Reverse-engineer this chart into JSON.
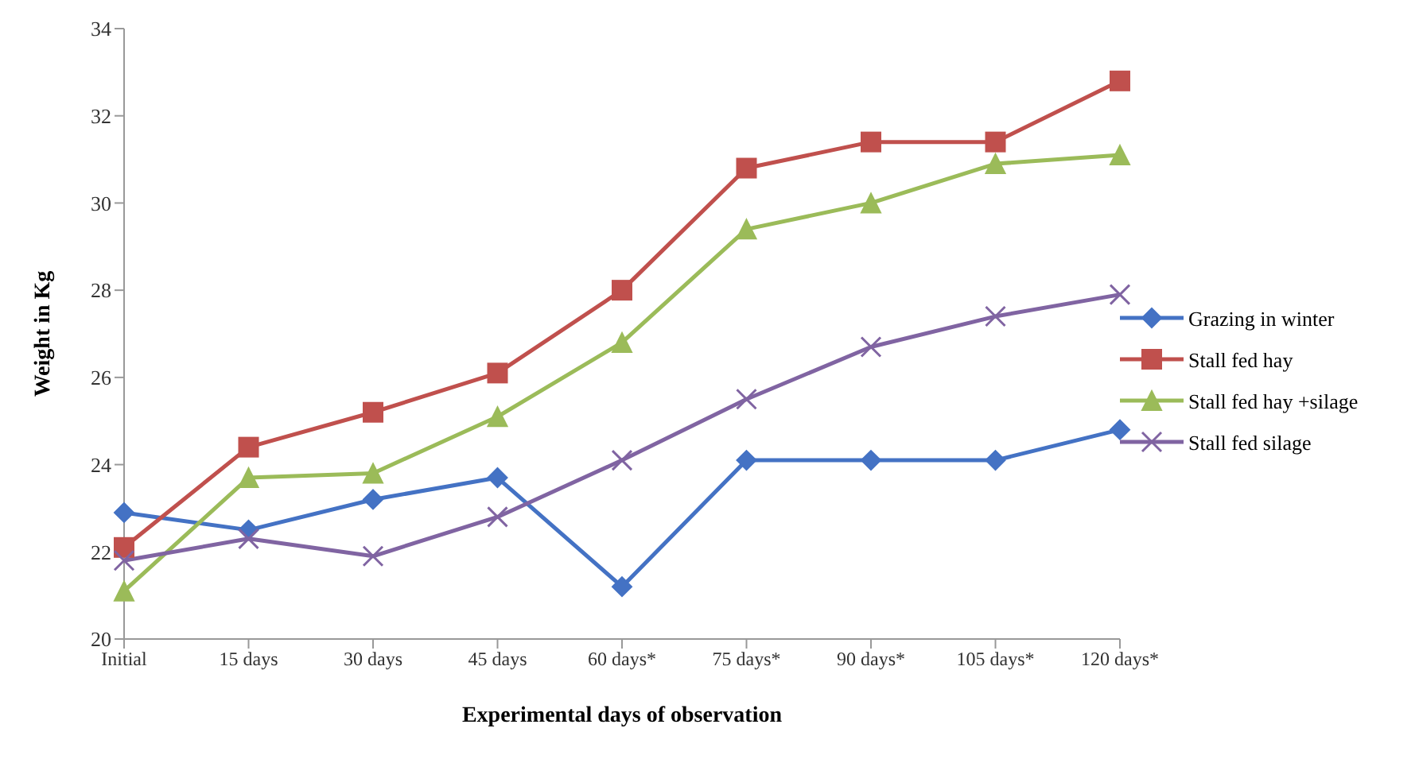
{
  "chart_data": {
    "type": "line",
    "xlabel": "Experimental days of observation",
    "ylabel": "Weight in Kg",
    "categories": [
      "Initial",
      "15 days",
      "30 days",
      "45 days",
      "60 days*",
      "75 days*",
      "90 days*",
      "105 days*",
      "120 days*"
    ],
    "ylim": [
      20,
      34
    ],
    "yticks": [
      20,
      22,
      24,
      26,
      28,
      30,
      32,
      34
    ],
    "grid": false,
    "legend": "right",
    "series": [
      {
        "name": "Grazing in winter",
        "color": "#4472c4",
        "marker": "diamond",
        "values": [
          22.9,
          22.5,
          23.2,
          23.7,
          21.2,
          24.1,
          24.1,
          24.1,
          24.8
        ]
      },
      {
        "name": "Stall fed hay",
        "color": "#c0504d",
        "marker": "square",
        "values": [
          22.1,
          24.4,
          25.2,
          26.1,
          28.0,
          30.8,
          31.4,
          31.4,
          32.8
        ]
      },
      {
        "name": "Stall fed hay +silage",
        "color": "#9bbb59",
        "marker": "triangle",
        "values": [
          21.1,
          23.7,
          23.8,
          25.1,
          26.8,
          29.4,
          30.0,
          30.9,
          31.1
        ]
      },
      {
        "name": "Stall fed silage",
        "color": "#8064a2",
        "marker": "cross",
        "values": [
          21.8,
          22.3,
          21.9,
          22.8,
          24.1,
          25.5,
          26.7,
          27.4,
          27.9
        ]
      }
    ]
  }
}
